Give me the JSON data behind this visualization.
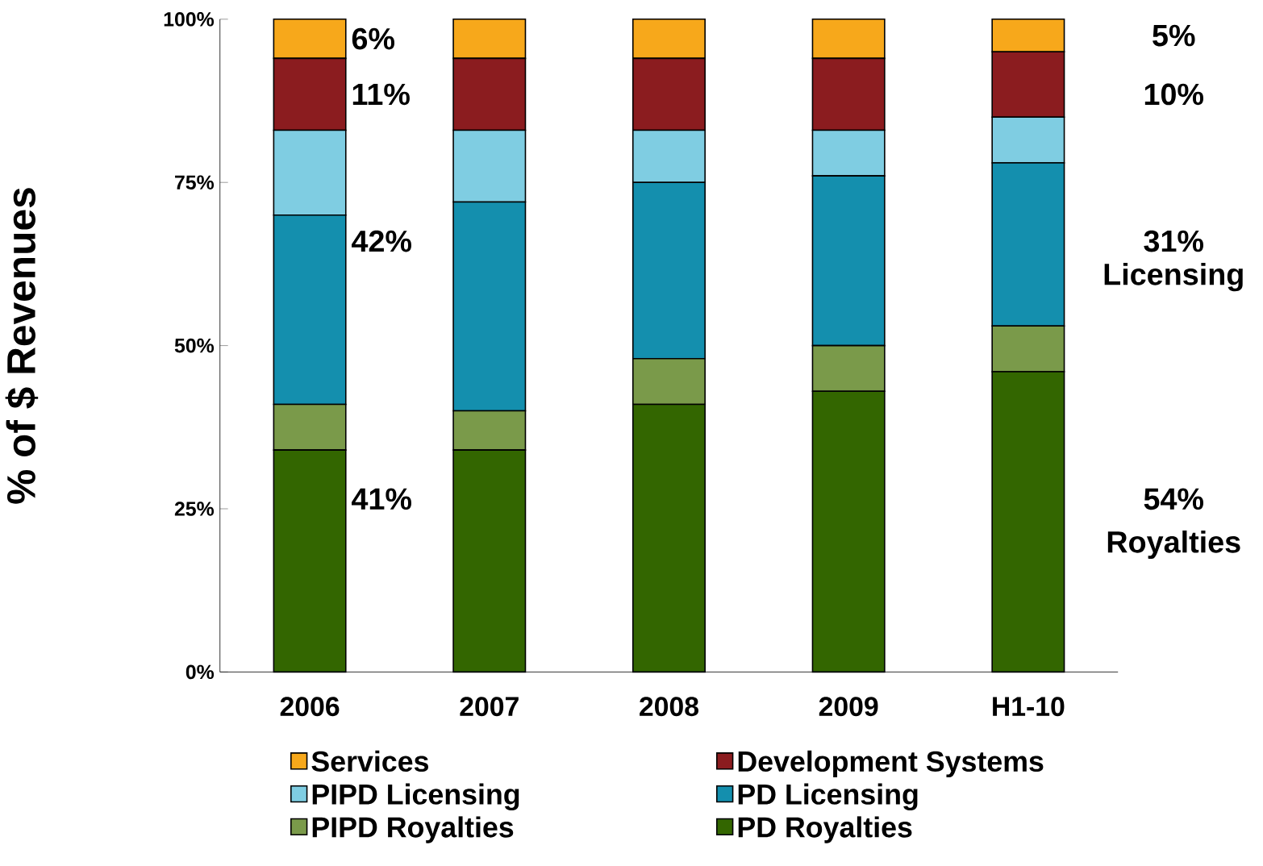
{
  "chart_data": {
    "type": "bar",
    "stacked": true,
    "ylabel": "% of $ Revenues",
    "categories": [
      "2006",
      "2007",
      "2008",
      "2009",
      "H1-10"
    ],
    "series": [
      {
        "name": "PD Royalties",
        "color": "#336600",
        "values": [
          34,
          34,
          41,
          43,
          46
        ]
      },
      {
        "name": "PIPD Royalties",
        "color": "#7a9a4a",
        "values": [
          7,
          6,
          7,
          7,
          7
        ]
      },
      {
        "name": "PD Licensing",
        "color": "#148fae",
        "values": [
          29,
          32,
          27,
          26,
          25
        ]
      },
      {
        "name": "PIPD Licensing",
        "color": "#7fcde2",
        "values": [
          13,
          11,
          8,
          7,
          7
        ]
      },
      {
        "name": "Development Systems",
        "color": "#8b1c1f",
        "values": [
          11,
          11,
          11,
          11,
          10
        ]
      },
      {
        "name": "Services",
        "color": "#f7a81b",
        "values": [
          6,
          6,
          6,
          6,
          5
        ]
      }
    ],
    "ylim": [
      0,
      100
    ],
    "yticks": [
      {
        "value": 0,
        "label": "0%"
      },
      {
        "value": 25,
        "label": "25%"
      },
      {
        "value": 50,
        "label": "50%"
      },
      {
        "value": 75,
        "label": "75%"
      },
      {
        "value": 100,
        "label": "100%"
      }
    ],
    "legend": "bottom",
    "annotations": [
      "6%",
      "11%",
      "42%",
      "41%",
      "5%",
      "10%",
      "31%",
      "Licensing",
      "54%",
      "Royalties"
    ]
  }
}
